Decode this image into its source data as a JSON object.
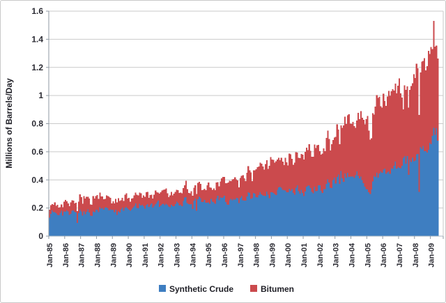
{
  "chart_data": {
    "type": "area",
    "stacked": true,
    "title": "",
    "xlabel": "",
    "ylabel": "Millions of Barrels/Day",
    "ylim": [
      0,
      1.6
    ],
    "ytick_labels": [
      "0",
      "0.2",
      "0.4",
      "0.6",
      "0.8",
      "1",
      "1.2",
      "1.4",
      "1.6"
    ],
    "x_tick_labels": [
      "Jan-85",
      "Jan-86",
      "Jan-87",
      "Jan-88",
      "Jan-89",
      "Jan-90",
      "Jan-91",
      "Jan-92",
      "Jan-93",
      "Jan-94",
      "Jan-95",
      "Jan-96",
      "Jan-97",
      "Jan-98",
      "Jan-99",
      "Jan-00",
      "Jan-01",
      "Jan-02",
      "Jan-03",
      "Jan-04",
      "Jan-05",
      "Jan-06",
      "Jan-07",
      "Jan-08",
      "Jan-09"
    ],
    "x_range_note": "monthly data from Jan-1985 to mid-2009",
    "months_total": 294,
    "grid": true,
    "legend_position": "bottom",
    "legend": [
      {
        "name": "Synthetic Crude",
        "color": "#3E7EC1"
      },
      {
        "name": "Bitumen",
        "color": "#CB4A4D"
      }
    ],
    "series": [
      {
        "name": "Synthetic Crude",
        "color": "#3E7EC1",
        "anchor_interval": "semiannual",
        "semiannual_values": [
          0.15,
          0.17,
          0.16,
          0.18,
          0.17,
          0.16,
          0.19,
          0.2,
          0.17,
          0.18,
          0.2,
          0.21,
          0.21,
          0.22,
          0.22,
          0.22,
          0.23,
          0.24,
          0.25,
          0.26,
          0.25,
          0.26,
          0.26,
          0.25,
          0.26,
          0.28,
          0.28,
          0.3,
          0.3,
          0.31,
          0.31,
          0.33,
          0.32,
          0.34,
          0.33,
          0.36,
          0.4,
          0.43,
          0.44,
          0.43,
          0.3,
          0.42,
          0.44,
          0.47,
          0.5,
          0.55,
          0.58,
          0.62,
          0.68,
          0.8
        ]
      },
      {
        "name": "Bitumen",
        "color": "#CB4A4D",
        "anchor_interval": "semiannual",
        "semiannual_values": [
          0.05,
          0.06,
          0.07,
          0.08,
          0.09,
          0.09,
          0.09,
          0.09,
          0.09,
          0.08,
          0.08,
          0.08,
          0.08,
          0.08,
          0.09,
          0.09,
          0.1,
          0.1,
          0.1,
          0.11,
          0.11,
          0.11,
          0.12,
          0.13,
          0.14,
          0.16,
          0.19,
          0.21,
          0.22,
          0.22,
          0.23,
          0.25,
          0.26,
          0.28,
          0.29,
          0.31,
          0.33,
          0.36,
          0.4,
          0.42,
          0.45,
          0.46,
          0.52,
          0.56,
          0.55,
          0.57,
          0.58,
          0.62,
          0.63,
          0.68
        ]
      }
    ],
    "noise": {
      "seed": 123456789,
      "dip_chance": 0.045,
      "comment": "month-to-month production variability visible in chart"
    }
  }
}
